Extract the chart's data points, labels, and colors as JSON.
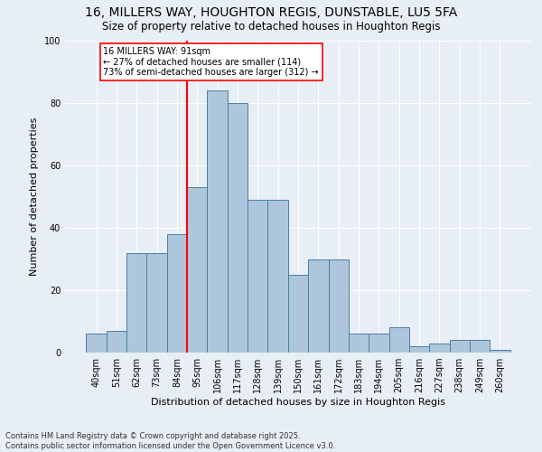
{
  "title1": "16, MILLERS WAY, HOUGHTON REGIS, DUNSTABLE, LU5 5FA",
  "title2": "Size of property relative to detached houses in Houghton Regis",
  "xlabel": "Distribution of detached houses by size in Houghton Regis",
  "ylabel": "Number of detached properties",
  "footer1": "Contains HM Land Registry data © Crown copyright and database right 2025.",
  "footer2": "Contains public sector information licensed under the Open Government Licence v3.0.",
  "bin_labels": [
    "40sqm",
    "51sqm",
    "62sqm",
    "73sqm",
    "84sqm",
    "95sqm",
    "106sqm",
    "117sqm",
    "128sqm",
    "139sqm",
    "150sqm",
    "161sqm",
    "172sqm",
    "183sqm",
    "194sqm",
    "205sqm",
    "216sqm",
    "227sqm",
    "238sqm",
    "249sqm",
    "260sqm"
  ],
  "bar_heights": [
    6,
    7,
    32,
    32,
    38,
    53,
    84,
    80,
    49,
    49,
    25,
    30,
    30,
    6,
    6,
    8,
    2,
    3,
    4,
    4,
    1
  ],
  "bar_color": "#aec6dc",
  "bar_edge_color": "#4a7fa5",
  "vline_color": "red",
  "vline_x_index": 4.5,
  "annotation_text": "16 MILLERS WAY: 91sqm\n← 27% of detached houses are smaller (114)\n73% of semi-detached houses are larger (312) →",
  "ylim": [
    0,
    100
  ],
  "bg_color": "#e8eef5",
  "plot_bg_color": "#e8eef5",
  "grid_color": "#ffffff",
  "title1_fontsize": 10,
  "title2_fontsize": 8.5,
  "xlabel_fontsize": 8,
  "ylabel_fontsize": 8,
  "tick_fontsize": 7,
  "footer_fontsize": 6
}
